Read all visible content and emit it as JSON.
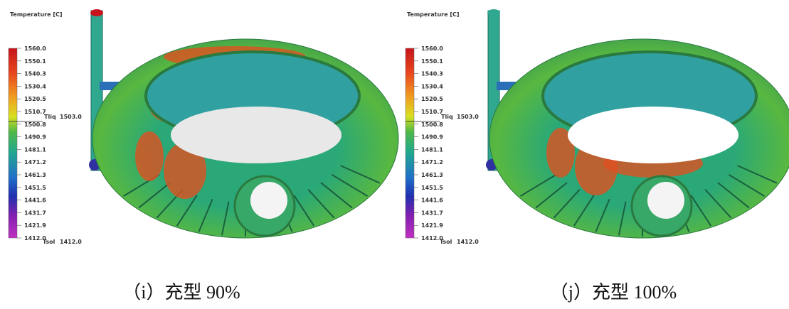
{
  "panels": [
    {
      "title": "Temperature [C]",
      "legend_labels": [
        "1560.0",
        "1550.1",
        "1540.3",
        "1530.4",
        "1520.5",
        "1510.7",
        "1500.8",
        "1490.9",
        "1481.1",
        "1471.2",
        "1461.3",
        "1451.5",
        "1441.6",
        "1431.7",
        "1421.9",
        "1412.0"
      ],
      "liquidus": {
        "label": "Tliq",
        "value": "1503.0"
      },
      "solidus": {
        "label": "Tsol",
        "value": "1412.0"
      },
      "caption": "（i）充型 90%"
    },
    {
      "title": "Temperature [C]",
      "legend_labels": [
        "1560.0",
        "1550.1",
        "1540.3",
        "1530.4",
        "1520.5",
        "1510.7",
        "1500.8",
        "1490.9",
        "1481.1",
        "1471.2",
        "1461.3",
        "1451.5",
        "1441.6",
        "1431.7",
        "1421.9",
        "1412.0"
      ],
      "liquidus": {
        "label": "Tliq",
        "value": "1503.0"
      },
      "solidus": {
        "label": "Tsol",
        "value": "1412.0"
      },
      "caption": "（j）充型 100%"
    }
  ]
}
